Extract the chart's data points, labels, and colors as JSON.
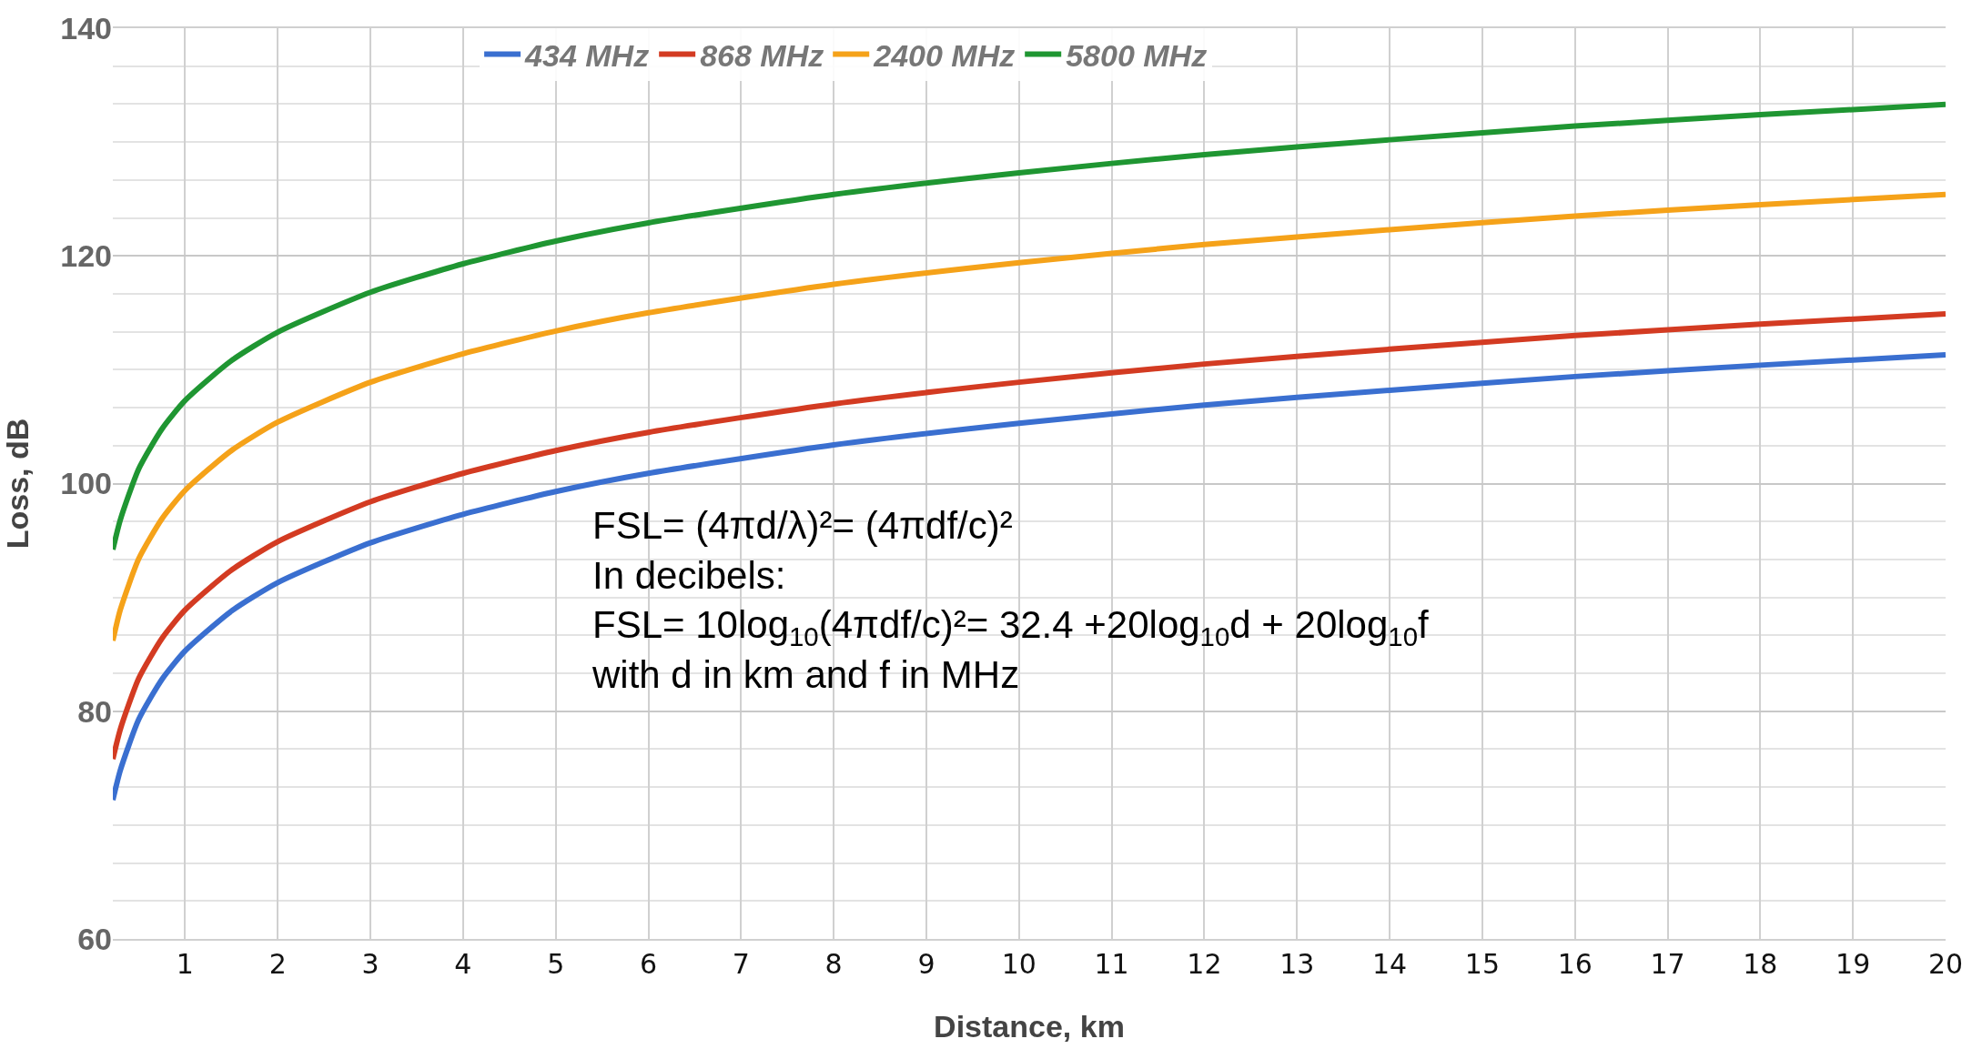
{
  "chart_data": {
    "type": "line",
    "xlabel": "Distance, km",
    "ylabel": "Loss, dB",
    "x": [
      0.22,
      0.3,
      0.5,
      0.75,
      1,
      1.5,
      2,
      3,
      4,
      5,
      6,
      8,
      10,
      12,
      14,
      16,
      18,
      20
    ],
    "series": [
      {
        "name": "434 MHz",
        "color": "#3a6fd0",
        "values": [
          72.2,
          74.8,
          79.3,
          82.8,
          85.3,
          88.8,
          91.3,
          94.8,
          97.3,
          99.3,
          100.9,
          103.4,
          105.3,
          106.9,
          108.2,
          109.4,
          110.4,
          111.3
        ]
      },
      {
        "name": "868 MHz",
        "color": "#d33b22",
        "values": [
          75.8,
          78.4,
          82.9,
          86.4,
          88.9,
          92.4,
          94.9,
          98.4,
          100.9,
          102.9,
          104.5,
          107.0,
          108.9,
          110.5,
          111.8,
          113.0,
          114.0,
          114.9
        ]
      },
      {
        "name": "2400 MHz",
        "color": "#f5a219",
        "values": [
          86.2,
          88.9,
          93.4,
          96.9,
          99.4,
          102.9,
          105.4,
          108.9,
          111.4,
          113.4,
          115.0,
          117.5,
          119.4,
          121.0,
          122.3,
          123.5,
          124.5,
          125.4
        ]
      },
      {
        "name": "5800 MHz",
        "color": "#1f9632",
        "values": [
          94.2,
          96.8,
          101.3,
          104.8,
          107.3,
          110.8,
          113.3,
          116.8,
          119.3,
          121.3,
          122.9,
          125.4,
          127.3,
          128.9,
          130.2,
          131.4,
          132.4,
          133.3
        ]
      }
    ],
    "xlim": [
      0.22,
      20
    ],
    "xticks": [
      1,
      2,
      3,
      4,
      5,
      6,
      7,
      8,
      9,
      10,
      11,
      12,
      13,
      14,
      15,
      16,
      17,
      18,
      19,
      20
    ],
    "ylim": [
      60,
      140
    ],
    "yticks": [
      60,
      80,
      100,
      120,
      140
    ],
    "grid": true,
    "legend": "top",
    "marker": "none",
    "line_style": "solid",
    "annotations": [
      "FSL= (4πd/λ)²= (4πdf/c)²\nIn decibels:\nFSL= 10log$_{10}$(4πdf/c)²= 32.4 +20log$_{10}$d + 20log$_{10}$f\nwith d in km and f in MHz"
    ]
  }
}
